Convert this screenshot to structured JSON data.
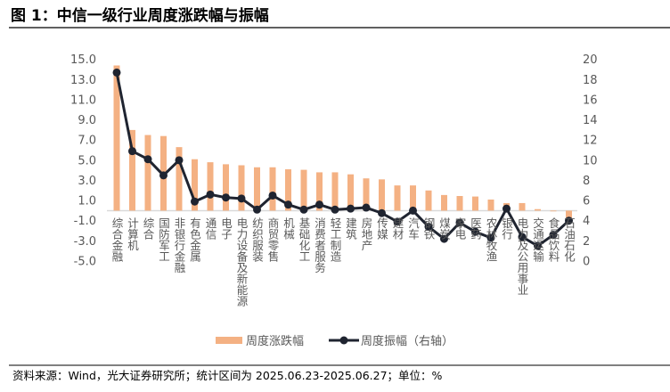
{
  "title": "图 1：中信一级行业周度涨跌幅与振幅",
  "source": "资料来源：Wind，光大证券研究所；统计区间为 2025.06.23-2025.06.27；单位：%",
  "colors": {
    "bar": "#F4B183",
    "line": "#1F2430"
  },
  "chart_data": {
    "type": "bar+line",
    "categories": [
      "综合金融",
      "计算机",
      "综合",
      "国防军工",
      "非银行金融",
      "有色金属",
      "通信",
      "电子",
      "电力设备及新能源",
      "纺织服装",
      "商贸零售",
      "机械",
      "基础化工",
      "消费者服务",
      "轻工制造",
      "建筑",
      "房地产",
      "传媒",
      "建材",
      "汽车",
      "钢铁",
      "煤炭",
      "家电",
      "医药",
      "农林牧渔",
      "银行",
      "电力及公用事业",
      "交通运输",
      "食品饮料",
      "石油石化"
    ],
    "series": [
      {
        "name": "周度涨跌幅",
        "type": "bar",
        "axis": "left",
        "values": [
          14.4,
          8.0,
          7.5,
          7.4,
          6.3,
          5.1,
          4.8,
          4.6,
          4.5,
          4.3,
          4.3,
          4.1,
          4.05,
          3.8,
          3.8,
          3.6,
          3.2,
          3.1,
          2.5,
          2.5,
          2.0,
          1.55,
          1.45,
          1.4,
          1.1,
          0.75,
          0.75,
          0.15,
          0.0,
          -0.7
        ]
      },
      {
        "name": "周度振幅（右轴）",
        "type": "line",
        "axis": "right",
        "values": [
          18.7,
          10.9,
          10.1,
          8.5,
          10.0,
          5.9,
          6.6,
          6.3,
          6.2,
          5.1,
          6.5,
          5.6,
          5.1,
          5.6,
          5.1,
          5.2,
          5.3,
          4.75,
          3.9,
          5.0,
          3.4,
          2.2,
          3.8,
          2.9,
          2.3,
          5.2,
          2.4,
          1.5,
          2.6,
          4.0
        ]
      }
    ],
    "left_axis": {
      "ylim": [
        -5.0,
        15.0
      ],
      "ticks": [
        "15.0",
        "13.0",
        "11.0",
        "9.0",
        "7.0",
        "5.0",
        "3.0",
        "1.0",
        "-1.0",
        "-3.0",
        "-5.0"
      ]
    },
    "right_axis": {
      "ylim": [
        0,
        20
      ],
      "ticks": [
        "20",
        "18",
        "16",
        "14",
        "12",
        "10",
        "8",
        "6",
        "4",
        "2",
        "0"
      ]
    },
    "grid": false,
    "legend_position": "bottom-right"
  }
}
